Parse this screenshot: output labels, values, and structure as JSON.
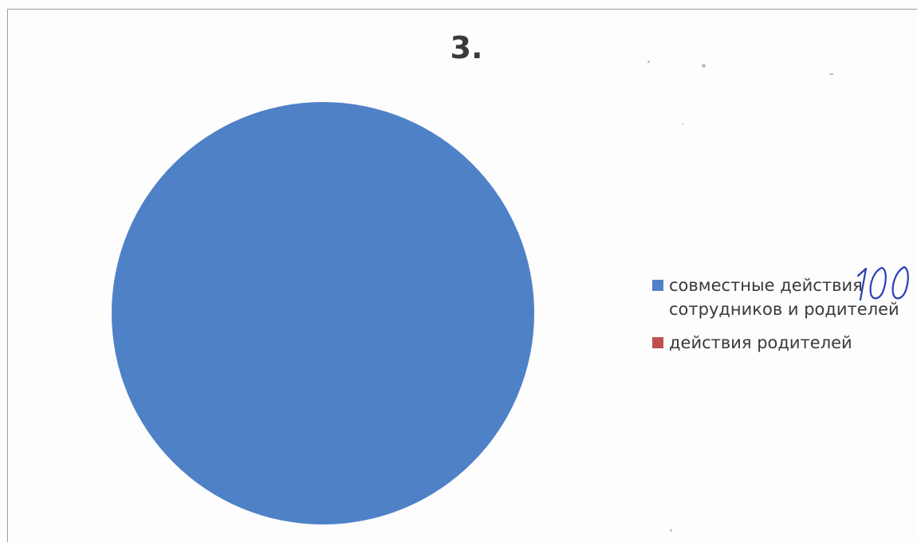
{
  "chart_data": {
    "type": "pie",
    "title": "3.",
    "categories": [
      "совместные действия сотрудников и родителей",
      "действия родителей"
    ],
    "values": [
      100,
      0
    ],
    "colors": [
      "#4f81c7",
      "#c0504d"
    ],
    "legend": {
      "position": "right",
      "entries": [
        {
          "line1": "совместные действия",
          "line2": "сотрудников и родителей",
          "color": "#4f81c7"
        },
        {
          "line1": "действия родителей",
          "line2": "",
          "color": "#c0504d"
        }
      ]
    },
    "annotation": {
      "handwritten": "100"
    }
  }
}
